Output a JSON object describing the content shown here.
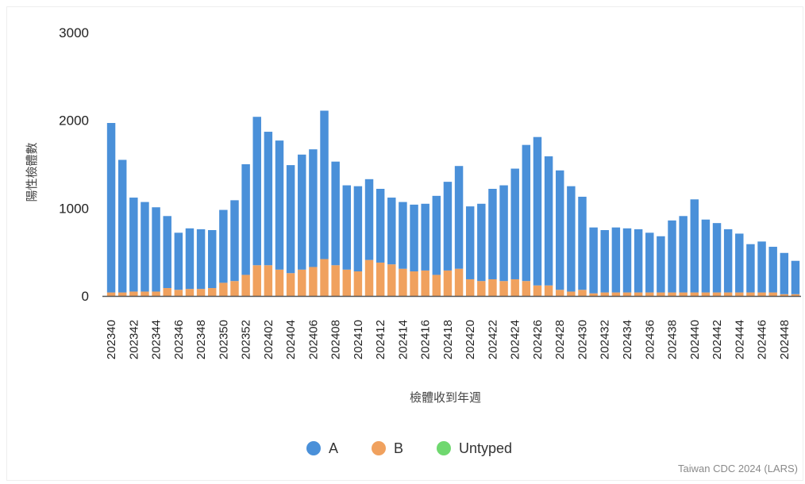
{
  "chart_data": {
    "type": "bar",
    "stacked": true,
    "title": "",
    "xlabel": "檢體收到年週",
    "ylabel": "陽性檢體數",
    "ylim": [
      0,
      3000
    ],
    "yticks": [
      0,
      1000,
      2000,
      3000
    ],
    "categories": [
      "202340",
      "202341",
      "202342",
      "202343",
      "202344",
      "202345",
      "202346",
      "202347",
      "202348",
      "202349",
      "202350",
      "202351",
      "202352",
      "202401",
      "202402",
      "202403",
      "202404",
      "202405",
      "202406",
      "202407",
      "202408",
      "202409",
      "202410",
      "202411",
      "202412",
      "202413",
      "202414",
      "202415",
      "202416",
      "202417",
      "202418",
      "202419",
      "202420",
      "202421",
      "202422",
      "202423",
      "202424",
      "202425",
      "202426",
      "202427",
      "202428",
      "202429",
      "202430",
      "202431",
      "202432",
      "202433",
      "202434",
      "202435",
      "202436",
      "202437",
      "202438",
      "202439",
      "202440",
      "202441",
      "202442",
      "202443",
      "202444",
      "202445",
      "202446",
      "202447",
      "202448",
      "202449"
    ],
    "tick_labels": [
      "202340",
      "202342",
      "202344",
      "202346",
      "202348",
      "202350",
      "202352",
      "202402",
      "202404",
      "202406",
      "202408",
      "202410",
      "202412",
      "202414",
      "202416",
      "202418",
      "202420",
      "202422",
      "202424",
      "202426",
      "202428",
      "202430",
      "202432",
      "202434",
      "202436",
      "202438",
      "202440",
      "202442",
      "202444",
      "202446",
      "202448"
    ],
    "series": [
      {
        "name": "A",
        "color": "#4a90d9",
        "values": [
          1930,
          1510,
          1070,
          1020,
          960,
          820,
          650,
          690,
          680,
          660,
          830,
          920,
          1260,
          1690,
          1520,
          1470,
          1230,
          1310,
          1340,
          1690,
          1180,
          960,
          970,
          920,
          840,
          760,
          760,
          760,
          760,
          900,
          1010,
          1170,
          830,
          880,
          1030,
          1090,
          1260,
          1550,
          1690,
          1470,
          1360,
          1200,
          1060,
          750,
          710,
          740,
          730,
          720,
          680,
          640,
          820,
          870,
          1060,
          830,
          790,
          720,
          670,
          550,
          580,
          520,
          470,
          380
        ]
      },
      {
        "name": "B",
        "color": "#f0a15e",
        "values": [
          40,
          40,
          50,
          50,
          50,
          90,
          70,
          80,
          80,
          90,
          150,
          170,
          240,
          350,
          350,
          300,
          260,
          300,
          330,
          420,
          350,
          300,
          280,
          410,
          380,
          360,
          310,
          280,
          290,
          240,
          290,
          310,
          190,
          170,
          190,
          170,
          190,
          170,
          120,
          120,
          70,
          50,
          70,
          30,
          40,
          40,
          40,
          40,
          40,
          40,
          40,
          40,
          40,
          40,
          40,
          40,
          40,
          40,
          40,
          40,
          20,
          20
        ]
      },
      {
        "name": "Untyped",
        "color": "#6fd86f",
        "values": [
          0,
          0,
          0,
          0,
          0,
          0,
          0,
          0,
          0,
          0,
          0,
          0,
          0,
          0,
          0,
          0,
          0,
          0,
          0,
          0,
          0,
          0,
          0,
          0,
          0,
          0,
          0,
          0,
          0,
          0,
          0,
          0,
          0,
          0,
          0,
          0,
          0,
          0,
          0,
          0,
          0,
          0,
          0,
          0,
          0,
          0,
          0,
          0,
          0,
          0,
          0,
          0,
          0,
          0,
          0,
          0,
          0,
          0,
          0,
          0,
          0,
          0
        ]
      }
    ],
    "legend_position": "bottom",
    "grid": false
  },
  "source": "Taiwan CDC 2024 (LARS)"
}
